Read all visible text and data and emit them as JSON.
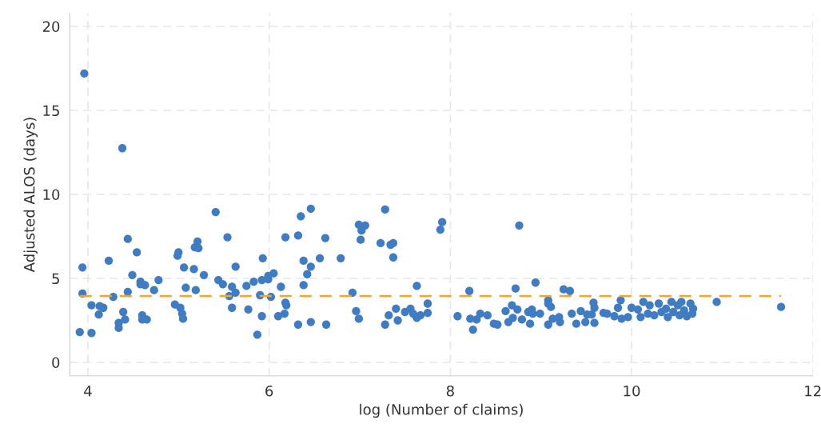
{
  "chart_data": {
    "type": "scatter",
    "xlabel": "log (Number of claims)",
    "ylabel": "Adjusted ALOS (days)",
    "xlim": [
      3.8,
      12.0
    ],
    "ylim": [
      -0.8,
      20.8
    ],
    "xticks": [
      4,
      6,
      8,
      10,
      12
    ],
    "yticks": [
      0,
      5,
      10,
      15,
      20
    ],
    "grid": true,
    "marker": "circle",
    "series": [
      {
        "color": "#3f7cc4",
        "x": [
          3.96,
          4.38,
          3.94,
          3.94,
          3.91,
          4.04,
          4.04,
          4.12,
          4.13,
          4.17,
          4.23,
          4.28,
          4.34,
          4.34,
          4.39,
          4.41,
          4.44,
          4.44,
          4.49,
          4.54,
          4.58,
          4.58,
          4.63,
          4.6,
          4.6,
          4.65,
          4.73,
          4.78,
          4.96,
          4.99,
          5.0,
          5.02,
          5.04,
          5.05,
          5.06,
          5.08,
          5.17,
          5.18,
          5.21,
          5.22,
          5.19,
          5.28,
          5.41,
          5.44,
          5.49,
          5.54,
          5.56,
          5.59,
          5.59,
          5.63,
          5.63,
          5.75,
          5.77,
          5.83,
          5.87,
          5.9,
          5.92,
          5.92,
          5.93,
          5.99,
          5.99,
          6.02,
          6.05,
          6.1,
          6.13,
          6.17,
          6.18,
          6.18,
          6.19,
          6.32,
          6.32,
          6.35,
          6.38,
          6.38,
          6.42,
          6.46,
          6.46,
          6.46,
          6.56,
          6.62,
          6.63,
          6.79,
          6.92,
          6.96,
          6.99,
          6.99,
          7.02,
          7.01,
          7.06,
          7.23,
          7.28,
          7.28,
          7.34,
          7.37,
          7.37,
          7.32,
          7.4,
          7.42,
          7.5,
          7.56,
          7.59,
          7.63,
          7.63,
          7.67,
          7.75,
          7.75,
          7.89,
          7.91,
          8.08,
          8.21,
          8.22,
          8.25,
          8.29,
          8.33,
          8.41,
          8.48,
          8.52,
          8.61,
          8.64,
          8.68,
          8.69,
          8.72,
          8.74,
          8.76,
          8.79,
          8.86,
          8.88,
          8.9,
          8.91,
          8.94,
          8.99,
          9.08,
          9.08,
          9.08,
          9.11,
          9.13,
          9.2,
          9.21,
          9.25,
          9.32,
          9.34,
          9.39,
          9.44,
          9.49,
          9.51,
          9.56,
          9.58,
          9.59,
          9.59,
          9.69,
          9.73,
          9.81,
          9.85,
          9.88,
          9.89,
          9.96,
          10.0,
          10.07,
          10.1,
          10.13,
          10.18,
          10.2,
          10.25,
          10.3,
          10.33,
          10.38,
          10.4,
          10.44,
          10.46,
          10.51,
          10.53,
          10.55,
          10.58,
          10.61,
          10.65,
          10.67,
          10.68,
          10.94,
          11.65
        ],
        "values": [
          17.2,
          12.75,
          5.65,
          4.1,
          1.8,
          1.75,
          3.4,
          2.85,
          3.35,
          3.25,
          6.05,
          3.9,
          2.05,
          2.35,
          3.0,
          2.55,
          7.35,
          4.2,
          5.2,
          6.55,
          4.8,
          4.65,
          4.6,
          2.8,
          2.55,
          2.55,
          4.3,
          4.9,
          3.45,
          6.35,
          6.55,
          3.25,
          2.9,
          2.6,
          5.65,
          4.45,
          5.55,
          6.85,
          7.2,
          6.8,
          4.3,
          5.2,
          8.95,
          4.9,
          4.65,
          7.45,
          3.95,
          4.5,
          3.25,
          4.15,
          5.7,
          4.55,
          3.15,
          4.8,
          1.65,
          4.0,
          2.75,
          4.9,
          6.2,
          4.95,
          5.15,
          3.9,
          5.3,
          2.75,
          4.5,
          2.9,
          3.55,
          7.45,
          3.4,
          7.55,
          2.25,
          8.7,
          6.05,
          4.6,
          5.25,
          5.7,
          9.15,
          2.4,
          6.2,
          7.4,
          2.25,
          6.2,
          4.15,
          3.05,
          2.6,
          8.2,
          7.85,
          7.3,
          8.15,
          7.1,
          9.1,
          2.25,
          7.0,
          7.1,
          6.25,
          2.8,
          3.2,
          2.5,
          3.0,
          3.2,
          2.9,
          4.55,
          2.65,
          2.8,
          2.95,
          3.5,
          7.9,
          8.35,
          2.75,
          4.25,
          2.6,
          1.95,
          2.55,
          2.9,
          2.8,
          2.3,
          2.25,
          3.05,
          2.4,
          3.4,
          2.65,
          4.4,
          3.15,
          8.15,
          2.55,
          3.0,
          2.3,
          3.15,
          2.9,
          4.75,
          2.9,
          3.7,
          3.5,
          2.25,
          3.3,
          2.6,
          2.7,
          2.4,
          4.35,
          4.25,
          2.9,
          2.3,
          3.05,
          2.4,
          2.85,
          2.85,
          3.55,
          3.25,
          2.35,
          2.95,
          2.9,
          2.75,
          3.25,
          3.7,
          2.6,
          2.7,
          3.25,
          3.15,
          2.7,
          3.6,
          2.9,
          3.4,
          2.8,
          3.5,
          3.0,
          3.2,
          2.7,
          3.6,
          3.0,
          3.4,
          2.8,
          3.6,
          3.1,
          2.75,
          3.5,
          2.9,
          3.2,
          3.6,
          3.3
        ]
      }
    ],
    "ref_lines": [
      {
        "axis": "y",
        "value": 3.95,
        "color": "#f5a623",
        "line_style": "dashed"
      }
    ]
  }
}
